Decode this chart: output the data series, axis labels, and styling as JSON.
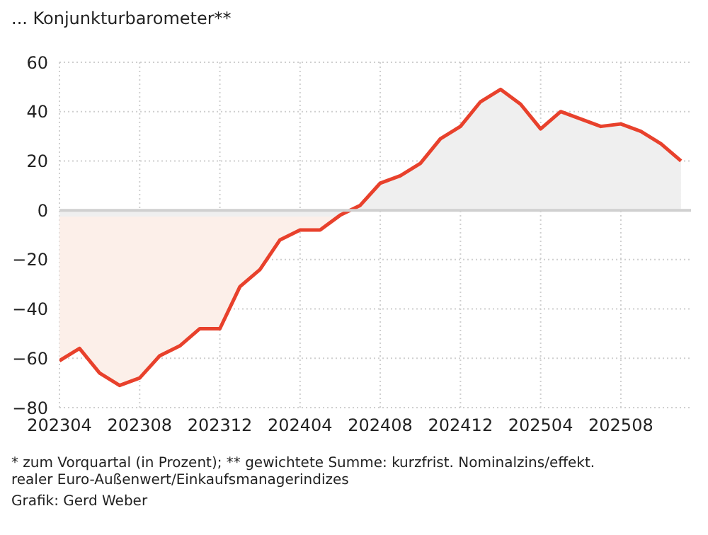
{
  "chart_data": {
    "type": "area",
    "title": "... Konjunkturbarometer**",
    "categories": [
      "202304",
      null,
      null,
      null,
      "202308",
      null,
      null,
      null,
      "202312",
      null,
      null,
      null,
      "202404",
      null,
      null,
      null,
      "202408",
      null,
      null,
      null,
      "202412",
      null,
      null,
      null,
      "202504",
      null,
      null,
      null,
      "202508",
      null,
      null,
      null
    ],
    "series": [
      {
        "color": "#e8412c",
        "values": [
          -61,
          -56,
          -66,
          -71,
          -68,
          -59,
          -55,
          -48,
          -48,
          -31,
          -24,
          -12,
          -8,
          -8,
          -2,
          2,
          11,
          14,
          19,
          29,
          34,
          44,
          49,
          43,
          33,
          40,
          37,
          34,
          35,
          32,
          27,
          20
        ]
      }
    ],
    "ylim": [
      -80,
      60
    ],
    "yticks": [
      -80,
      -60,
      -40,
      -20,
      0,
      20,
      40,
      60
    ],
    "grid": true,
    "ref_lines": [
      {
        "axis": "y",
        "value": 0,
        "color": "#d0d0d0"
      }
    ],
    "annotations": [
      "* zum Vorquartal (in Prozent); ** gewichtete Summe: kurzfrist. Nominalzins/effekt. realer Euro-Außenwert/Einkaufsmanagerindizes",
      "Grafik: Gerd Weber"
    ]
  }
}
